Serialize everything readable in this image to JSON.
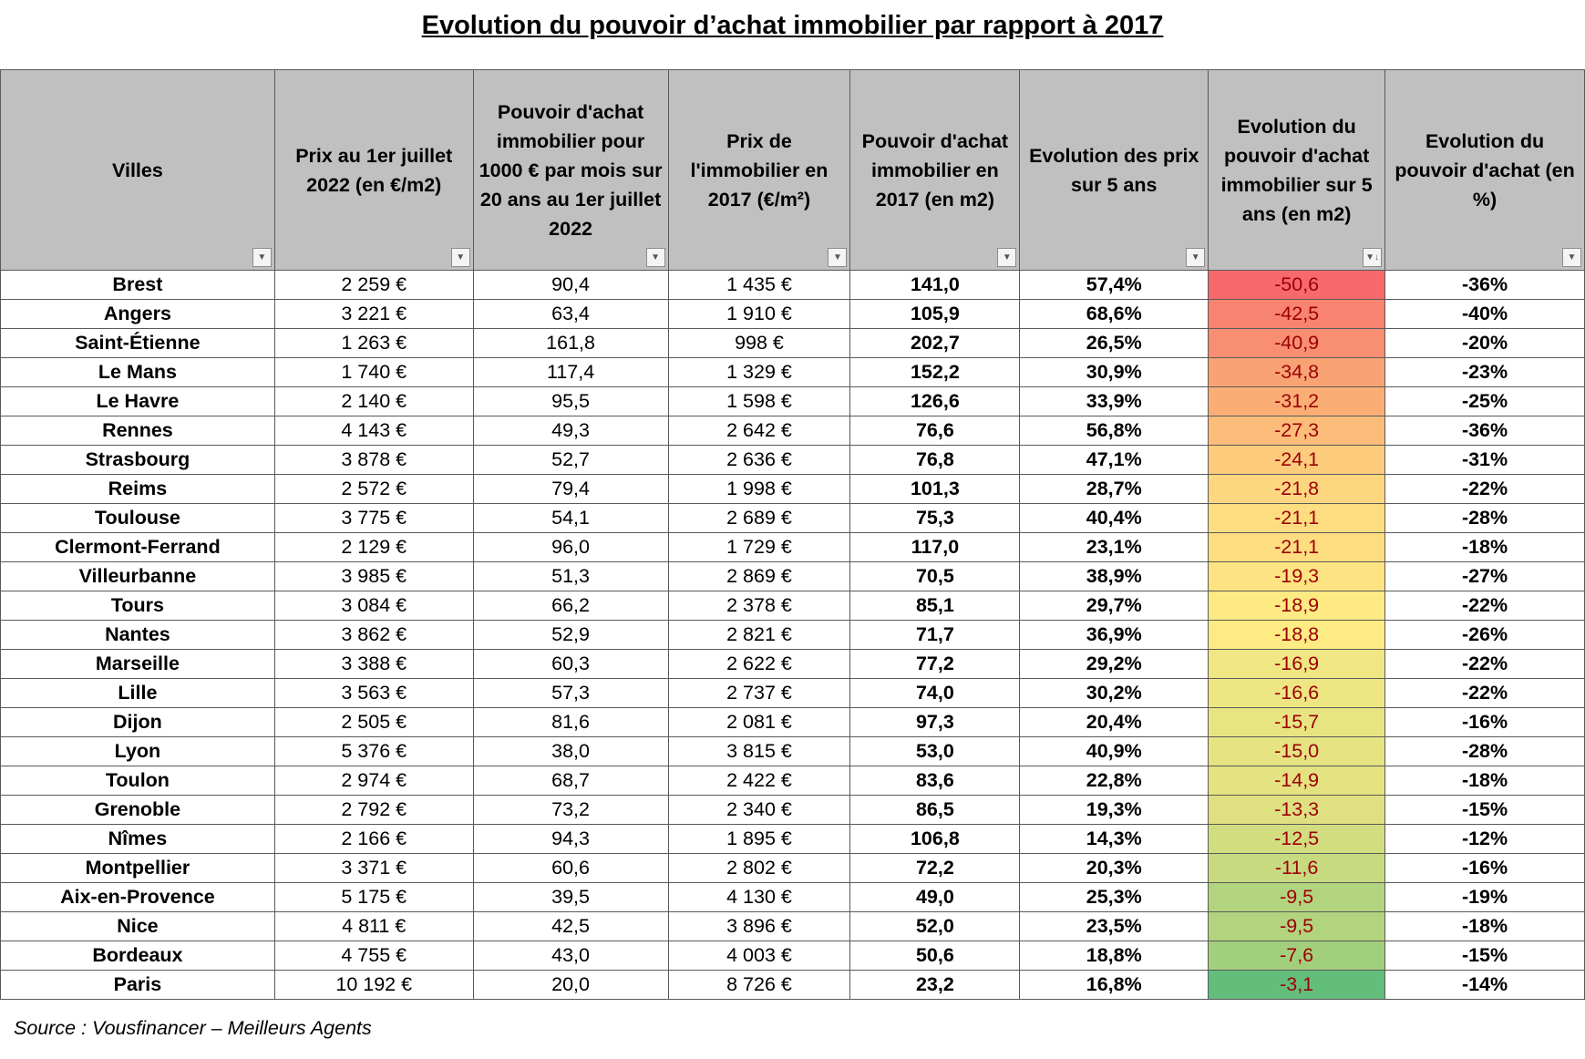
{
  "title": "Evolution du pouvoir d’achat immobilier par rapport à 2017",
  "source": "Source : Vousfinancer – Meilleurs Agents",
  "headers": [
    "Villes",
    "Prix au 1er juillet 2022 (en €/m2)",
    "Pouvoir d'achat immobilier pour 1000 € par mois sur 20 ans au 1er juillet 2022",
    "Prix de l'immobilier en 2017 (€/m²)",
    "Pouvoir d'achat immobilier en 2017  (en m2)",
    "Evolution des prix sur 5 ans",
    "Evolution du pouvoir d'achat immobilier sur 5 ans  (en m2)",
    "Evolution du pouvoir d'achat (en %)"
  ],
  "filter_icon": "dropdown-arrow-icon",
  "sort_icon": "sort-descending-icon",
  "rows": [
    [
      "Brest",
      "2 259 €",
      "90,4",
      "1 435 €",
      "141,0",
      "57,4%",
      "-50,6",
      "-36%"
    ],
    [
      "Angers",
      "3 221 €",
      "63,4",
      "1 910 €",
      "105,9",
      "68,6%",
      "-42,5",
      "-40%"
    ],
    [
      "Saint-Étienne",
      "1 263 €",
      "161,8",
      "998 €",
      "202,7",
      "26,5%",
      "-40,9",
      "-20%"
    ],
    [
      "Le Mans",
      "1 740 €",
      "117,4",
      "1 329 €",
      "152,2",
      "30,9%",
      "-34,8",
      "-23%"
    ],
    [
      "Le Havre",
      "2 140 €",
      "95,5",
      "1 598 €",
      "126,6",
      "33,9%",
      "-31,2",
      "-25%"
    ],
    [
      "Rennes",
      "4 143 €",
      "49,3",
      "2 642 €",
      "76,6",
      "56,8%",
      "-27,3",
      "-36%"
    ],
    [
      "Strasbourg",
      "3 878 €",
      "52,7",
      "2 636 €",
      "76,8",
      "47,1%",
      "-24,1",
      "-31%"
    ],
    [
      "Reims",
      "2 572 €",
      "79,4",
      "1 998 €",
      "101,3",
      "28,7%",
      "-21,8",
      "-22%"
    ],
    [
      "Toulouse",
      "3 775 €",
      "54,1",
      "2 689 €",
      "75,3",
      "40,4%",
      "-21,1",
      "-28%"
    ],
    [
      "Clermont-Ferrand",
      "2 129 €",
      "96,0",
      "1 729 €",
      "117,0",
      "23,1%",
      "-21,1",
      "-18%"
    ],
    [
      "Villeurbanne",
      "3 985 €",
      "51,3",
      "2 869 €",
      "70,5",
      "38,9%",
      "-19,3",
      "-27%"
    ],
    [
      "Tours",
      "3 084 €",
      "66,2",
      "2 378 €",
      "85,1",
      "29,7%",
      "-18,9",
      "-22%"
    ],
    [
      "Nantes",
      "3 862 €",
      "52,9",
      "2 821 €",
      "71,7",
      "36,9%",
      "-18,8",
      "-26%"
    ],
    [
      "Marseille",
      "3 388 €",
      "60,3",
      "2 622 €",
      "77,2",
      "29,2%",
      "-16,9",
      "-22%"
    ],
    [
      "Lille",
      "3 563 €",
      "57,3",
      "2 737 €",
      "74,0",
      "30,2%",
      "-16,6",
      "-22%"
    ],
    [
      "Dijon",
      "2 505 €",
      "81,6",
      "2 081 €",
      "97,3",
      "20,4%",
      "-15,7",
      "-16%"
    ],
    [
      "Lyon",
      "5 376 €",
      "38,0",
      "3 815 €",
      "53,0",
      "40,9%",
      "-15,0",
      "-28%"
    ],
    [
      "Toulon",
      "2 974 €",
      "68,7",
      "2 422 €",
      "83,6",
      "22,8%",
      "-14,9",
      "-18%"
    ],
    [
      "Grenoble",
      "2 792 €",
      "73,2",
      "2 340 €",
      "86,5",
      "19,3%",
      "-13,3",
      "-15%"
    ],
    [
      "Nîmes",
      "2 166 €",
      "94,3",
      "1 895 €",
      "106,8",
      "14,3%",
      "-12,5",
      "-12%"
    ],
    [
      "Montpellier",
      "3 371 €",
      "60,6",
      "2 802 €",
      "72,2",
      "20,3%",
      "-11,6",
      "-16%"
    ],
    [
      "Aix-en-Provence",
      "5 175 €",
      "39,5",
      "4 130 €",
      "49,0",
      "25,3%",
      "-9,5",
      "-19%"
    ],
    [
      "Nice",
      "4 811 €",
      "42,5",
      "3 896 €",
      "52,0",
      "23,5%",
      "-9,5",
      "-18%"
    ],
    [
      "Bordeaux",
      "4 755 €",
      "43,0",
      "4 003 €",
      "50,6",
      "18,8%",
      "-7,6",
      "-15%"
    ],
    [
      "Paris",
      "10 192 €",
      "20,0",
      "8 726 €",
      "23,2",
      "16,8%",
      "-3,1",
      "-14%"
    ]
  ],
  "heat_colors": [
    "#f8696b",
    "#f88370",
    "#f88e72",
    "#f9a374",
    "#faae76",
    "#fbbd79",
    "#fccc7c",
    "#fdd780",
    "#fddd80",
    "#fddd80",
    "#fee382",
    "#feea83",
    "#feeb84",
    "#f0e683",
    "#eee683",
    "#e9e482",
    "#e6e382",
    "#e4e281",
    "#dee081",
    "#d2dd80",
    "#c8da7f",
    "#b2d47e",
    "#b2d47e",
    "#a2cf7c",
    "#63be7b"
  ]
}
